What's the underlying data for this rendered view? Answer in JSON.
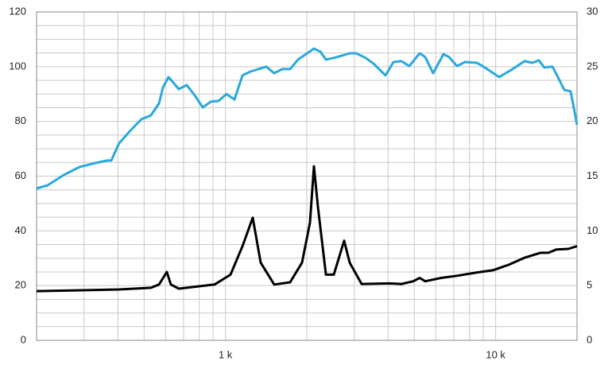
{
  "chart_data": {
    "type": "line",
    "xscale": "log",
    "xlim": [
      200,
      20000
    ],
    "ylim": [
      0,
      120
    ],
    "y2lim": [
      0,
      30
    ],
    "xticks": [
      {
        "value": 1000,
        "label": "1 k"
      },
      {
        "value": 10000,
        "label": "10 k"
      }
    ],
    "yticks": [
      0,
      20,
      40,
      60,
      80,
      100,
      120
    ],
    "y2ticks": [
      0,
      5,
      10,
      15,
      20,
      25,
      30
    ],
    "x_grid": [
      200,
      300,
      400,
      500,
      600,
      700,
      800,
      900,
      1000,
      2000,
      3000,
      4000,
      5000,
      6000,
      7000,
      8000,
      9000,
      10000,
      20000
    ],
    "y_grid": [
      0,
      5,
      10,
      15,
      20,
      25,
      30,
      35,
      40,
      45,
      50,
      55,
      60,
      65,
      70,
      75,
      80,
      85,
      90,
      95,
      100,
      105,
      110,
      115,
      120
    ],
    "grid": true,
    "grid_color": "#c8c8c8",
    "series": [
      {
        "color": "#2aa9dc",
        "x": [
          200,
          220,
          252,
          288,
          330,
          365,
          378,
          404,
          448,
          489,
          530,
          568,
          587,
          616,
          672,
          719,
          770,
          824,
          882,
          943,
          1009,
          1080,
          1156,
          1237,
          1323,
          1416,
          1515,
          1621,
          1735,
          1856,
          1987,
          2126,
          2244,
          2354,
          2518,
          2695,
          2884,
          3045,
          3302,
          3533,
          3911,
          4186,
          4477,
          4791,
          5234,
          5487,
          5871,
          6411,
          6724,
          7195,
          7698,
          8523,
          9120,
          10300,
          11557,
          12793,
          13689,
          14450,
          15152,
          16215,
          16772,
          17950,
          18946,
          20000
        ],
        "values": [
          55.5,
          56.7,
          60.4,
          63.3,
          64.8,
          65.7,
          65.7,
          72,
          77,
          80.8,
          82.2,
          86.6,
          92.4,
          96.2,
          91.8,
          93.3,
          89.5,
          85.1,
          87.2,
          87.5,
          90,
          88,
          96.8,
          98.2,
          99.1,
          100,
          97.6,
          99.1,
          99.1,
          102.6,
          104.6,
          106.6,
          105.5,
          102.6,
          103.2,
          104,
          104.9,
          104.9,
          103.2,
          101.1,
          96.8,
          101.7,
          102,
          100.2,
          104.9,
          103.5,
          97.6,
          104.6,
          103.5,
          100.2,
          101.7,
          101.4,
          99.7,
          96.2,
          99.1,
          102,
          101.4,
          102.3,
          99.7,
          100,
          97.3,
          91.5,
          91,
          78.8
        ]
      },
      {
        "color": "#000000",
        "axis": "y2",
        "x": [
          200,
          404,
          530,
          568,
          607,
          628,
          672,
          912,
          1044,
          1156,
          1262,
          1350,
          1515,
          1735,
          1921,
          2055,
          2126,
          2199,
          2354,
          2518,
          2750,
          2884,
          3191,
          4046,
          4477,
          4957,
          5234,
          5487,
          6282,
          7195,
          8523,
          9757,
          11172,
          12793,
          14646,
          15676,
          16772,
          18565,
          20000
        ],
        "values": [
          4.5,
          4.65,
          4.8,
          5.1,
          6.25,
          5.1,
          4.72,
          5.1,
          6.0,
          8.6,
          11.2,
          7.1,
          5.1,
          5.3,
          7.1,
          10.75,
          15.9,
          12.2,
          6.0,
          6.0,
          9.1,
          7.1,
          5.15,
          5.2,
          5.15,
          5.4,
          5.7,
          5.4,
          5.7,
          5.9,
          6.2,
          6.4,
          6.9,
          7.55,
          8.0,
          8.0,
          8.3,
          8.35,
          8.6
        ]
      }
    ]
  }
}
